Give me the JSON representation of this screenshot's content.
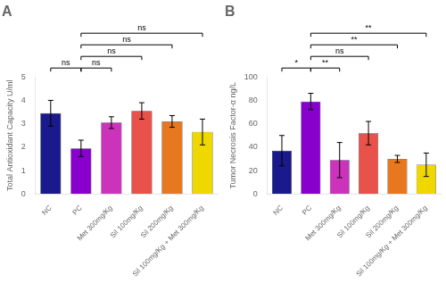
{
  "chart_data": [
    {
      "type": "bar",
      "title": "A",
      "y_label": "Total Antioxidant Capacity U/ml",
      "categories": [
        "NC",
        "PC",
        "Met 300mg/Kg",
        "Sil 100mg/Kg",
        "Sil 200mg/Kg",
        "Sil 100mg/Kg + Met 300mg/Kg"
      ],
      "values": [
        3.45,
        1.95,
        3.05,
        3.55,
        3.1,
        2.65
      ],
      "errors": [
        0.55,
        0.35,
        0.25,
        0.35,
        0.25,
        0.55
      ],
      "colors": [
        "#1a1a8c",
        "#8800cc",
        "#cc33bb",
        "#e8524a",
        "#e87820",
        "#eed800"
      ],
      "ylim": [
        0,
        5.0
      ],
      "yticks": [
        0,
        1,
        2,
        3,
        4,
        5
      ],
      "grid": false,
      "legend": false,
      "annotations": [
        {
          "text": "ns",
          "from": "NC",
          "to": "PC"
        },
        {
          "text": "ns",
          "from": "PC",
          "to": "Met 300mg/Kg"
        },
        {
          "text": "ns",
          "from": "PC",
          "to": "Sil 100mg/Kg"
        },
        {
          "text": "ns",
          "from": "PC",
          "to": "Sil 200mg/Kg"
        },
        {
          "text": "ns",
          "from": "PC",
          "to": "Sil 100mg/Kg + Met 300mg/Kg"
        }
      ]
    },
    {
      "type": "bar",
      "title": "B",
      "y_label": "Tumor Necrosis Factor-α ng/L",
      "categories": [
        "NC",
        "PC",
        "Met 300mg/Kg",
        "Sil 100mg/Kg",
        "Sil 200mg/Kg",
        "Sil 100mg/Kg + Met 300mg/Kg"
      ],
      "values": [
        37,
        79,
        29,
        52,
        30,
        25
      ],
      "errors": [
        13,
        7,
        15,
        10,
        3,
        10
      ],
      "colors": [
        "#1a1a8c",
        "#8800cc",
        "#cc33bb",
        "#e8524a",
        "#e87820",
        "#eed800"
      ],
      "ylim": [
        0,
        100
      ],
      "yticks": [
        0,
        20,
        40,
        60,
        80,
        100
      ],
      "grid": false,
      "legend": false,
      "annotations": [
        {
          "text": "*",
          "from": "NC",
          "to": "PC"
        },
        {
          "text": "**",
          "from": "PC",
          "to": "Met 300mg/Kg"
        },
        {
          "text": "ns",
          "from": "PC",
          "to": "Sil 100mg/Kg"
        },
        {
          "text": "**",
          "from": "PC",
          "to": "Sil 200mg/Kg"
        },
        {
          "text": "**",
          "from": "PC",
          "to": "Sil 100mg/Kg + Met 300mg/Kg"
        }
      ]
    }
  ]
}
